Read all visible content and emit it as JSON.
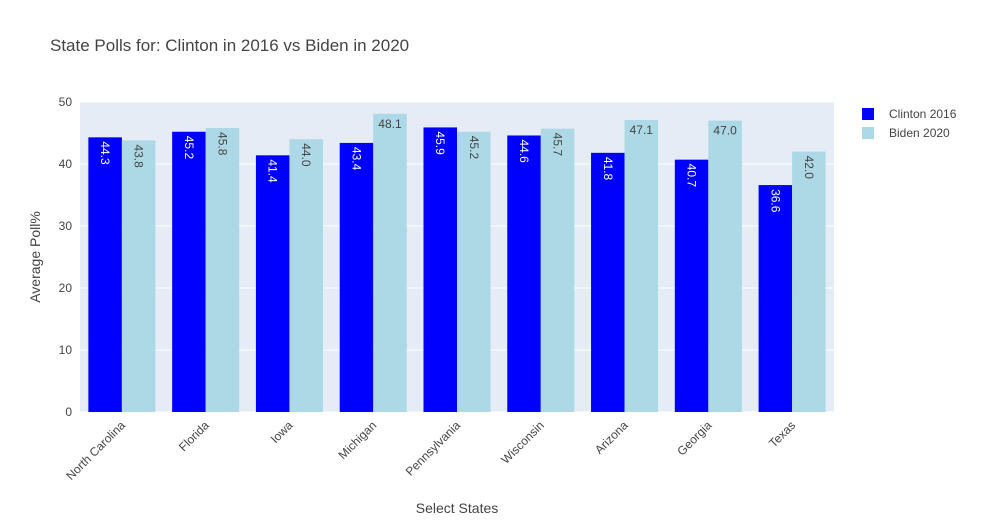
{
  "chart_data": {
    "type": "bar",
    "title": "State Polls for: Clinton in 2016 vs Biden in 2020",
    "xlabel": "Select States",
    "ylabel": "Average Poll%",
    "ylim": [
      0,
      50
    ],
    "yticks": [
      "0",
      "10",
      "20",
      "30",
      "40",
      "50"
    ],
    "categories": [
      "North Carolina",
      "Florida",
      "Iowa",
      "Michigan",
      "Pennsylvania",
      "Wisconsin",
      "Arizona",
      "Georgia",
      "Texas"
    ],
    "series": [
      {
        "name": "Clinton 2016",
        "color": "#0000ff",
        "label_color": "#ffffff",
        "values": [
          44.3,
          45.2,
          41.4,
          43.4,
          45.9,
          44.6,
          41.8,
          40.7,
          36.6
        ],
        "labels": [
          "44.3",
          "45.2",
          "41.4",
          "43.4",
          "45.9",
          "44.6",
          "41.8",
          "40.7",
          "36.6"
        ]
      },
      {
        "name": "Biden 2020",
        "color": "#add8e6",
        "label_color": "#444444",
        "values": [
          43.8,
          45.8,
          44.0,
          48.1,
          45.2,
          45.7,
          47.1,
          47.0,
          42.0
        ],
        "labels": [
          "43.8",
          "45.8",
          "44.0",
          "48.1",
          "45.2",
          "45.7",
          "47.1",
          "47.0",
          "42.0"
        ]
      }
    ],
    "grid": true,
    "legend_position": "top-right",
    "plot_background": "#e5ecf6"
  }
}
